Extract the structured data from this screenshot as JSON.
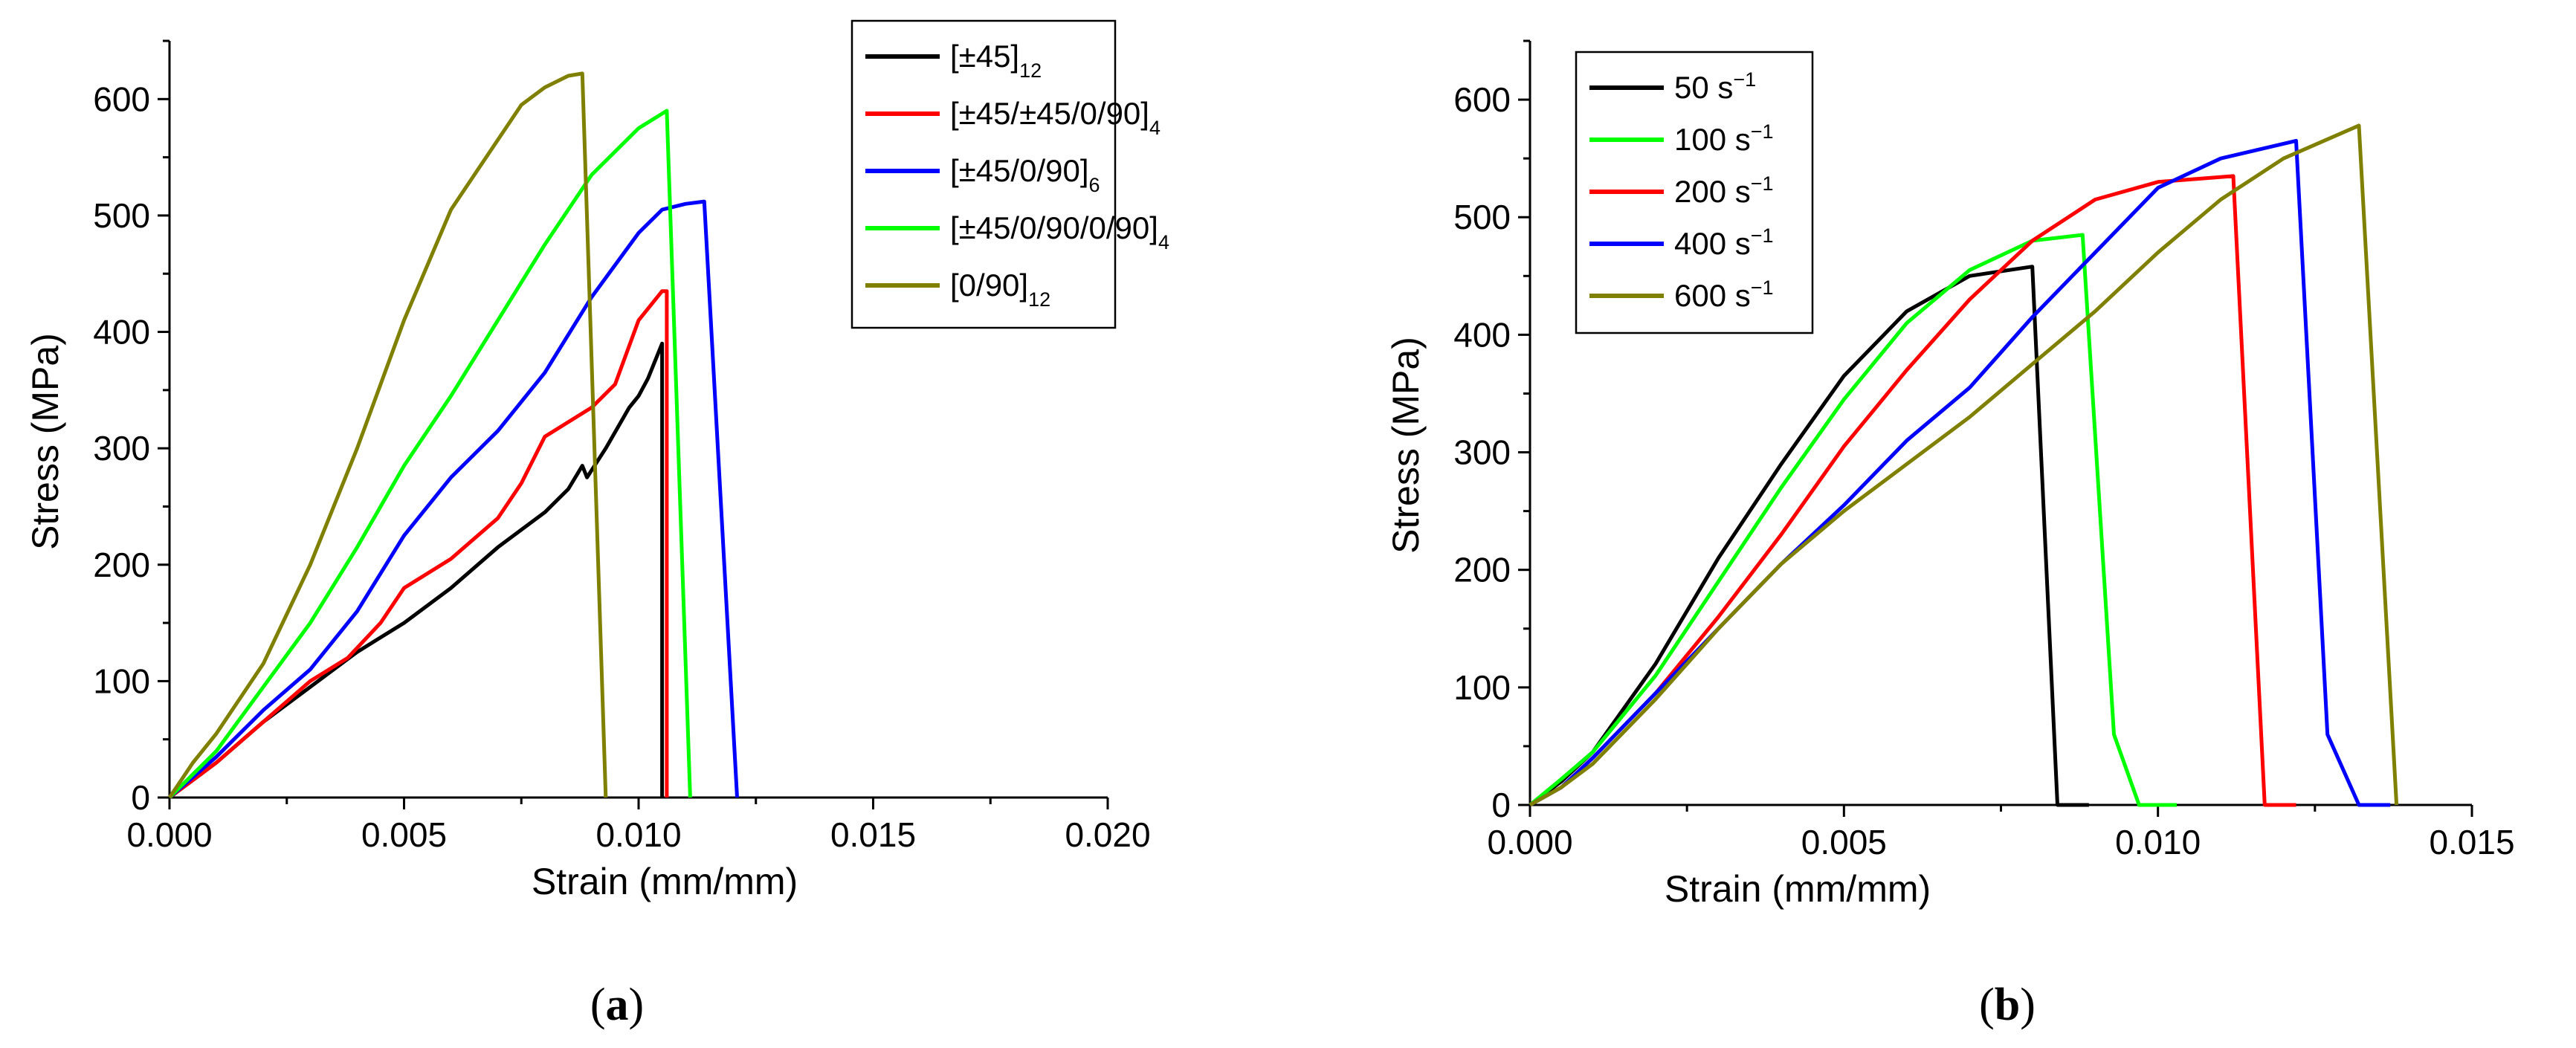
{
  "chart_data": [
    {
      "type": "line",
      "panel_label": "a",
      "xlabel": "Strain (mm/mm)",
      "ylabel": "Stress (MPa)",
      "xlim": [
        0,
        0.02
      ],
      "ylim": [
        0,
        650
      ],
      "xticks": [
        "0.000",
        "0.005",
        "0.010",
        "0.015",
        "0.020"
      ],
      "yticks": [
        "0",
        "100",
        "200",
        "300",
        "400",
        "500",
        "600"
      ],
      "legend_position": "top-right",
      "series": [
        {
          "name": "[±45]",
          "sub": "12",
          "color": "#000000",
          "points": [
            [
              0,
              0
            ],
            [
              0.001,
              30
            ],
            [
              0.002,
              65
            ],
            [
              0.003,
              95
            ],
            [
              0.004,
              125
            ],
            [
              0.005,
              150
            ],
            [
              0.006,
              180
            ],
            [
              0.007,
              215
            ],
            [
              0.008,
              245
            ],
            [
              0.0085,
              265
            ],
            [
              0.0088,
              285
            ],
            [
              0.0089,
              275
            ],
            [
              0.0093,
              300
            ],
            [
              0.0098,
              335
            ],
            [
              0.0099,
              340
            ],
            [
              0.01,
              345
            ],
            [
              0.0102,
              360
            ],
            [
              0.0105,
              390
            ],
            [
              0.0105,
              0
            ]
          ]
        },
        {
          "name": "[±45/±45/0/90]",
          "sub": "4",
          "color": "#ff0000",
          "points": [
            [
              0,
              0
            ],
            [
              0.001,
              30
            ],
            [
              0.002,
              65
            ],
            [
              0.003,
              100
            ],
            [
              0.0038,
              120
            ],
            [
              0.0045,
              150
            ],
            [
              0.005,
              180
            ],
            [
              0.006,
              205
            ],
            [
              0.007,
              240
            ],
            [
              0.0075,
              270
            ],
            [
              0.008,
              310
            ],
            [
              0.009,
              335
            ],
            [
              0.0095,
              355
            ],
            [
              0.01,
              410
            ],
            [
              0.0105,
              435
            ],
            [
              0.0106,
              435
            ],
            [
              0.0106,
              0
            ]
          ]
        },
        {
          "name": "[±45/0/90]",
          "sub": "6",
          "color": "#0000ff",
          "points": [
            [
              0,
              0
            ],
            [
              0.001,
              35
            ],
            [
              0.002,
              75
            ],
            [
              0.003,
              110
            ],
            [
              0.004,
              160
            ],
            [
              0.005,
              225
            ],
            [
              0.006,
              275
            ],
            [
              0.007,
              315
            ],
            [
              0.008,
              365
            ],
            [
              0.009,
              430
            ],
            [
              0.01,
              485
            ],
            [
              0.0105,
              505
            ],
            [
              0.011,
              510
            ],
            [
              0.0114,
              512
            ],
            [
              0.0121,
              0
            ]
          ]
        },
        {
          "name": "[±45/0/90/0/90]",
          "sub": "4",
          "color": "#00ff00",
          "points": [
            [
              0,
              0
            ],
            [
              0.001,
              40
            ],
            [
              0.002,
              95
            ],
            [
              0.003,
              150
            ],
            [
              0.004,
              215
            ],
            [
              0.005,
              285
            ],
            [
              0.006,
              345
            ],
            [
              0.007,
              410
            ],
            [
              0.008,
              475
            ],
            [
              0.009,
              535
            ],
            [
              0.01,
              575
            ],
            [
              0.0106,
              590
            ],
            [
              0.0111,
              0
            ]
          ]
        },
        {
          "name": "[0/90]",
          "sub": "12",
          "color": "#808000",
          "points": [
            [
              0,
              0
            ],
            [
              0.0005,
              30
            ],
            [
              0.001,
              55
            ],
            [
              0.002,
              115
            ],
            [
              0.003,
              200
            ],
            [
              0.004,
              300
            ],
            [
              0.005,
              410
            ],
            [
              0.006,
              505
            ],
            [
              0.007,
              565
            ],
            [
              0.0075,
              595
            ],
            [
              0.008,
              610
            ],
            [
              0.0085,
              620
            ],
            [
              0.0088,
              622
            ],
            [
              0.0093,
              0
            ]
          ]
        }
      ]
    },
    {
      "type": "line",
      "panel_label": "b",
      "xlabel": "Strain (mm/mm)",
      "ylabel": "Stress (MPa)",
      "xlim": [
        0,
        0.015
      ],
      "ylim": [
        0,
        650
      ],
      "xticks": [
        "0.000",
        "0.005",
        "0.010",
        "0.015"
      ],
      "yticks": [
        "0",
        "100",
        "200",
        "300",
        "400",
        "500",
        "600"
      ],
      "legend_position": "top-left",
      "series": [
        {
          "name": "50 s",
          "sup": "−1",
          "color": "#000000",
          "points": [
            [
              0,
              0
            ],
            [
              0.0005,
              20
            ],
            [
              0.001,
              45
            ],
            [
              0.002,
              120
            ],
            [
              0.003,
              210
            ],
            [
              0.004,
              290
            ],
            [
              0.005,
              365
            ],
            [
              0.006,
              420
            ],
            [
              0.007,
              450
            ],
            [
              0.008,
              458
            ],
            [
              0.0084,
              0
            ],
            [
              0.0089,
              0
            ]
          ]
        },
        {
          "name": "100 s",
          "sup": "−1",
          "color": "#00ff00",
          "points": [
            [
              0,
              0
            ],
            [
              0.0005,
              22
            ],
            [
              0.001,
              45
            ],
            [
              0.002,
              110
            ],
            [
              0.003,
              190
            ],
            [
              0.004,
              270
            ],
            [
              0.005,
              345
            ],
            [
              0.006,
              410
            ],
            [
              0.007,
              455
            ],
            [
              0.008,
              480
            ],
            [
              0.0088,
              485
            ],
            [
              0.0093,
              60
            ],
            [
              0.0097,
              0
            ],
            [
              0.0103,
              0
            ]
          ]
        },
        {
          "name": "200 s",
          "sup": "−1",
          "color": "#ff0000",
          "points": [
            [
              0,
              0
            ],
            [
              0.0005,
              15
            ],
            [
              0.001,
              40
            ],
            [
              0.002,
              95
            ],
            [
              0.003,
              160
            ],
            [
              0.004,
              230
            ],
            [
              0.005,
              305
            ],
            [
              0.006,
              370
            ],
            [
              0.007,
              430
            ],
            [
              0.008,
              480
            ],
            [
              0.009,
              515
            ],
            [
              0.01,
              530
            ],
            [
              0.0112,
              535
            ],
            [
              0.0117,
              0
            ],
            [
              0.0122,
              0
            ]
          ]
        },
        {
          "name": "400 s",
          "sup": "−1",
          "color": "#0000ff",
          "points": [
            [
              0,
              0
            ],
            [
              0.0005,
              15
            ],
            [
              0.001,
              40
            ],
            [
              0.002,
              95
            ],
            [
              0.003,
              150
            ],
            [
              0.004,
              205
            ],
            [
              0.005,
              255
            ],
            [
              0.006,
              310
            ],
            [
              0.007,
              355
            ],
            [
              0.008,
              415
            ],
            [
              0.009,
              470
            ],
            [
              0.01,
              525
            ],
            [
              0.011,
              550
            ],
            [
              0.0122,
              565
            ],
            [
              0.0127,
              60
            ],
            [
              0.0132,
              0
            ],
            [
              0.0137,
              0
            ]
          ]
        },
        {
          "name": "600 s",
          "sup": "−1",
          "color": "#808000",
          "points": [
            [
              0,
              0
            ],
            [
              0.0005,
              15
            ],
            [
              0.001,
              35
            ],
            [
              0.002,
              90
            ],
            [
              0.003,
              150
            ],
            [
              0.004,
              205
            ],
            [
              0.005,
              250
            ],
            [
              0.006,
              290
            ],
            [
              0.007,
              330
            ],
            [
              0.008,
              375
            ],
            [
              0.009,
              420
            ],
            [
              0.01,
              470
            ],
            [
              0.011,
              515
            ],
            [
              0.012,
              550
            ],
            [
              0.0132,
              578
            ],
            [
              0.0138,
              0
            ]
          ]
        }
      ]
    }
  ],
  "captions": [
    {
      "open": "(",
      "letter": "a",
      "close": ")"
    },
    {
      "open": "(",
      "letter": "b",
      "close": ")"
    }
  ]
}
